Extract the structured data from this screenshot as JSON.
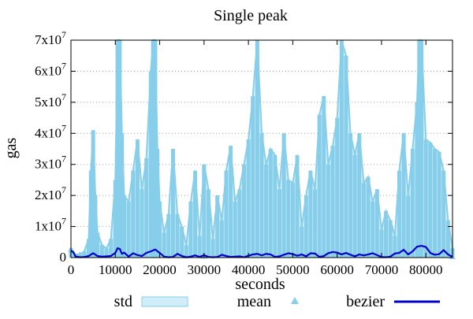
{
  "chart_data": {
    "type": "area",
    "title": "Single peak",
    "xlabel": "seconds",
    "ylabel": "gas",
    "xlim": [
      0,
      86000
    ],
    "ylim": [
      0,
      70000000
    ],
    "x_ticks": [
      {
        "value": 0,
        "label": "0"
      },
      {
        "value": 10000,
        "label": "10000"
      },
      {
        "value": 20000,
        "label": "20000"
      },
      {
        "value": 30000,
        "label": "30000"
      },
      {
        "value": 40000,
        "label": "40000"
      },
      {
        "value": 50000,
        "label": "50000"
      },
      {
        "value": 60000,
        "label": "60000"
      },
      {
        "value": 70000,
        "label": "70000"
      },
      {
        "value": 80000,
        "label": "80000"
      }
    ],
    "y_ticks": [
      {
        "value": 0,
        "base": "0",
        "exp": ""
      },
      {
        "value": 10000000,
        "base": "1x10",
        "exp": "7"
      },
      {
        "value": 20000000,
        "base": "2x10",
        "exp": "7"
      },
      {
        "value": 30000000,
        "base": "3x10",
        "exp": "7"
      },
      {
        "value": 40000000,
        "base": "4x10",
        "exp": "7"
      },
      {
        "value": 50000000,
        "base": "5x10",
        "exp": "7"
      },
      {
        "value": 60000000,
        "base": "6x10",
        "exp": "7"
      },
      {
        "value": 70000000,
        "base": "7x10",
        "exp": "7"
      }
    ],
    "grid": {
      "y": true,
      "x": false,
      "style": "dotted"
    },
    "legend_position": "bottom",
    "series": [
      {
        "name": "std",
        "kind": "envelope",
        "color": "#87ceeb",
        "fill": "#cfeefa",
        "x": [
          0,
          1000,
          2000,
          3000,
          4000,
          4500,
          5000,
          5500,
          6000,
          7000,
          8000,
          9000,
          10000,
          10500,
          11000,
          11500,
          12000,
          13000,
          14000,
          15000,
          16000,
          17000,
          18000,
          18500,
          19000,
          19500,
          20000,
          21000,
          22000,
          23000,
          24000,
          25000,
          26000,
          27000,
          28000,
          29000,
          30000,
          31000,
          32000,
          33000,
          34000,
          35000,
          36000,
          37000,
          38000,
          39000,
          40000,
          41000,
          42000,
          43000,
          44000,
          45000,
          46000,
          47000,
          48000,
          49000,
          50000,
          51000,
          52000,
          53000,
          54000,
          55000,
          56000,
          57000,
          58000,
          59000,
          60000,
          61000,
          62000,
          63000,
          64000,
          65000,
          66000,
          67000,
          68000,
          69000,
          70000,
          71000,
          72000,
          73000,
          74000,
          75000,
          76000,
          77000,
          78000,
          78500,
          79000,
          80000,
          81000,
          82000,
          83000,
          84000,
          85000,
          86000
        ],
        "upper": [
          3000000,
          1000000,
          1000000,
          2000000,
          6000000,
          28000000,
          41000000,
          20000000,
          8000000,
          4000000,
          3000000,
          6000000,
          25000000,
          70000000,
          70000000,
          40000000,
          20000000,
          18000000,
          28000000,
          38000000,
          22000000,
          32000000,
          60000000,
          70000000,
          70000000,
          35000000,
          18000000,
          8000000,
          14000000,
          35000000,
          14000000,
          10000000,
          4000000,
          18000000,
          28000000,
          7000000,
          30000000,
          22000000,
          6000000,
          20000000,
          12000000,
          28000000,
          36000000,
          18000000,
          22000000,
          30000000,
          38000000,
          52000000,
          70000000,
          40000000,
          30000000,
          35000000,
          33000000,
          22000000,
          40000000,
          25000000,
          24000000,
          33000000,
          10000000,
          20000000,
          28000000,
          22000000,
          46000000,
          52000000,
          30000000,
          36000000,
          45000000,
          70000000,
          65000000,
          40000000,
          33000000,
          40000000,
          24000000,
          26000000,
          18000000,
          22000000,
          9000000,
          15000000,
          12000000,
          7000000,
          28000000,
          40000000,
          20000000,
          35000000,
          50000000,
          70000000,
          70000000,
          38000000,
          37000000,
          35000000,
          34000000,
          28000000,
          12000000,
          3000000
        ]
      },
      {
        "name": "mean",
        "kind": "scatter",
        "color": "#87ceeb",
        "x": [
          0,
          2000,
          4000,
          5000,
          6000,
          8000,
          10000,
          11000,
          12000,
          14000,
          16000,
          18000,
          19000,
          20000,
          22000,
          24000,
          26000,
          28000,
          30000,
          32000,
          34000,
          36000,
          38000,
          40000,
          42000,
          44000,
          46000,
          48000,
          50000,
          52000,
          54000,
          56000,
          58000,
          60000,
          62000,
          64000,
          66000,
          68000,
          70000,
          72000,
          74000,
          76000,
          78000,
          79000,
          80000,
          82000,
          84000,
          86000
        ],
        "values": [
          2500000,
          1000000,
          800000,
          1500000,
          900000,
          700000,
          1500000,
          3000000,
          1500000,
          1000000,
          1200000,
          2200000,
          2500000,
          1200000,
          600000,
          800000,
          500000,
          1000000,
          400000,
          700000,
          600000,
          800000,
          900000,
          1000000,
          1200000,
          900000,
          1100000,
          1300000,
          700000,
          800000,
          900000,
          1500000,
          1800000,
          1500000,
          1200000,
          1000000,
          1400000,
          700000,
          500000,
          600000,
          900000,
          1500000,
          3500000,
          4000000,
          3200000,
          1000000,
          1800000,
          300000
        ]
      },
      {
        "name": "bezier",
        "kind": "line",
        "color": "#0000cd",
        "x": [
          0,
          500,
          1000,
          2000,
          3000,
          4000,
          5000,
          6000,
          7000,
          8000,
          9000,
          10000,
          10500,
          11000,
          11500,
          12000,
          13000,
          14000,
          15000,
          16000,
          17000,
          18000,
          19000,
          20000,
          21000,
          22000,
          23000,
          24000,
          25000,
          26000,
          27000,
          28000,
          29000,
          30000,
          31000,
          32000,
          33000,
          34000,
          35000,
          36000,
          37000,
          38000,
          39000,
          40000,
          41000,
          42000,
          43000,
          44000,
          45000,
          46000,
          47000,
          48000,
          49000,
          50000,
          51000,
          52000,
          53000,
          54000,
          55000,
          56000,
          57000,
          58000,
          59000,
          60000,
          61000,
          62000,
          63000,
          64000,
          65000,
          66000,
          67000,
          68000,
          69000,
          70000,
          71000,
          72000,
          73000,
          74000,
          75000,
          76000,
          77000,
          78000,
          79000,
          80000,
          81000,
          82000,
          83000,
          84000,
          85000,
          86000
        ],
        "values": [
          2200000,
          1800000,
          400000,
          100000,
          200000,
          500000,
          1400000,
          500000,
          300000,
          400000,
          500000,
          1500000,
          3000000,
          2800000,
          1200000,
          1600000,
          300000,
          1400000,
          800000,
          500000,
          1500000,
          2000000,
          2600000,
          1500000,
          300000,
          100000,
          200000,
          1200000,
          500000,
          100000,
          300000,
          700000,
          200000,
          800000,
          200000,
          100000,
          200000,
          900000,
          500000,
          200000,
          300000,
          400000,
          100000,
          600000,
          1000000,
          1200000,
          700000,
          1200000,
          1000000,
          200000,
          400000,
          900000,
          1400000,
          1100000,
          600000,
          1000000,
          400000,
          1400000,
          1300000,
          200000,
          500000,
          1400000,
          1800000,
          1600000,
          1000000,
          1500000,
          900000,
          400000,
          1000000,
          700000,
          1000000,
          1400000,
          800000,
          200000,
          100000,
          300000,
          1300000,
          1500000,
          2500000,
          1000000,
          2000000,
          3500000,
          3800000,
          3400000,
          1500000,
          900000,
          1100000,
          2400000,
          1000000,
          200000
        ]
      }
    ]
  }
}
